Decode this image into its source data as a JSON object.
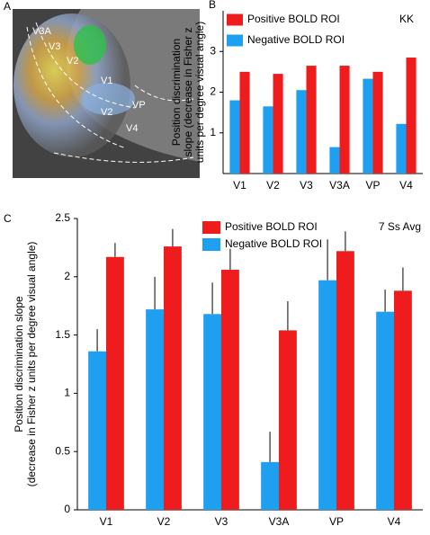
{
  "panel_a": {
    "panel_label": "A",
    "labels": [
      "V3A",
      "V3",
      "V2",
      "V1",
      "V2",
      "VP",
      "V4"
    ]
  },
  "chart_data": [
    {
      "type": "bar",
      "panel_label": "B",
      "annotation": "KK",
      "ylabel": [
        "Position discrimination",
        "slope (decrease in Fisher z",
        "units per degree visual angle)"
      ],
      "categories": [
        "V1",
        "V2",
        "V3",
        "V3A",
        "VP",
        "V4"
      ],
      "series": [
        {
          "name": "Positive BOLD ROI",
          "color": "#ee1c1c",
          "values": [
            2.5,
            2.45,
            2.65,
            2.65,
            2.5,
            2.85
          ]
        },
        {
          "name": "Negative BOLD ROI",
          "color": "#1e9ff0",
          "values": [
            1.8,
            1.65,
            2.05,
            0.65,
            2.33,
            1.22
          ]
        }
      ],
      "ylim": [
        0,
        4
      ],
      "yticks": [
        1,
        2,
        3
      ]
    },
    {
      "type": "bar",
      "panel_label": "C",
      "annotation": "7 Ss Avg",
      "ylabel": [
        "Position discrimination slope",
        "(decrease in Fisher z units per degree visual angle)"
      ],
      "categories": [
        "V1",
        "V2",
        "V3",
        "V3A",
        "VP",
        "V4"
      ],
      "series": [
        {
          "name": "Positive BOLD ROI",
          "color": "#ee1c1c",
          "values": [
            2.17,
            2.26,
            2.06,
            1.54,
            2.22,
            1.88
          ],
          "errors": [
            0.12,
            0.15,
            0.18,
            0.25,
            0.17,
            0.2
          ]
        },
        {
          "name": "Negative BOLD ROI",
          "color": "#1e9ff0",
          "values": [
            1.36,
            1.72,
            1.68,
            0.41,
            1.97,
            1.7
          ],
          "errors": [
            0.19,
            0.28,
            0.27,
            0.26,
            0.35,
            0.19
          ]
        }
      ],
      "ylim": [
        0,
        2.5
      ],
      "yticks": [
        0,
        0.5,
        1,
        1.5,
        2,
        2.5
      ]
    }
  ]
}
